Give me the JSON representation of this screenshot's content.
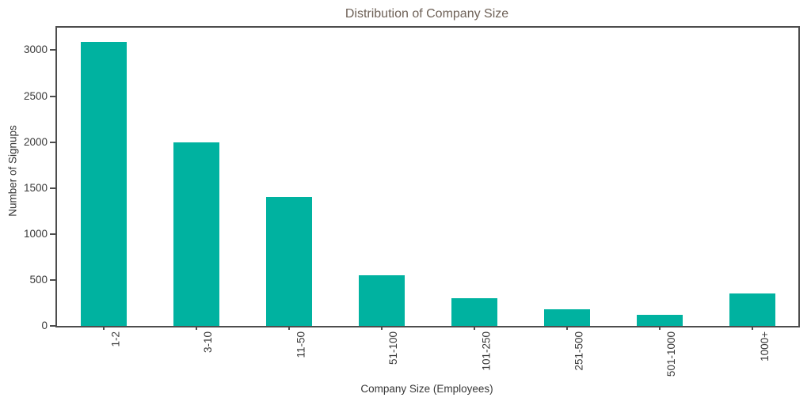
{
  "chart_data": {
    "type": "bar",
    "title": "Distribution of Company Size",
    "xlabel": "Company Size (Employees)",
    "ylabel": "Number of Signups",
    "categories": [
      "1-2",
      "3-10",
      "11-50",
      "51-100",
      "101-250",
      "251-500",
      "501-1000",
      "1000+"
    ],
    "values": [
      3090,
      2000,
      1400,
      550,
      300,
      180,
      125,
      350
    ],
    "yticks": [
      0,
      500,
      1000,
      1500,
      2000,
      2500,
      3000
    ],
    "ylim": [
      0,
      3244
    ],
    "x_tick_rotation_deg": 90,
    "grid": false,
    "legend": null,
    "colors": {
      "bar": "#00b2a0",
      "title": "#6e6157",
      "tick_labels": "#3a3a3a",
      "axis_labels": "#383838",
      "spines": "#4d4d4d"
    }
  }
}
